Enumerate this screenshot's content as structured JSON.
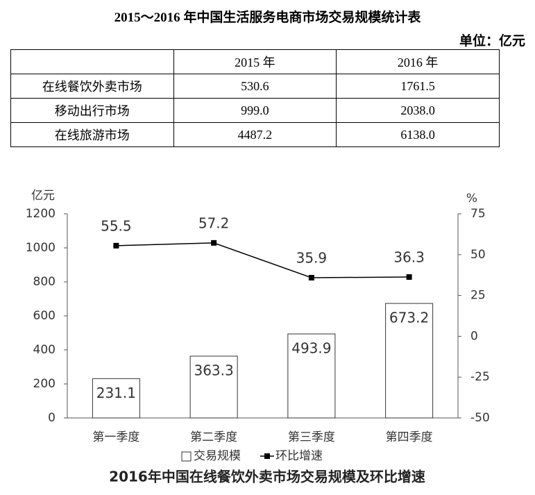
{
  "header": {
    "title": "2015～2016 年中国生活服务电商市场交易规模统计表",
    "unit": "单位：亿元"
  },
  "table": {
    "columns": [
      "2015 年",
      "2016 年"
    ],
    "rows": [
      [
        "在线餐饮外卖市场",
        "530.6",
        "1761.5"
      ],
      [
        "移动出行市场",
        "999.0",
        "2038.0"
      ],
      [
        "在线旅游市场",
        "4487.2",
        "6138.0"
      ]
    ]
  },
  "chart_data": {
    "type": "bar",
    "title": "2016年中国在线餐饮外卖市场交易规模及环比增速",
    "y_label": "亿元",
    "y2_label": "%",
    "categories": [
      "第一季度",
      "第二季度",
      "第三季度",
      "第四季度"
    ],
    "series": [
      {
        "name": "交易规模",
        "type": "bar",
        "color": "#ffffff",
        "values": [
          231.1,
          363.3,
          493.9,
          673.2
        ]
      },
      {
        "name": "环比增速",
        "type": "line",
        "axis": "y2",
        "color": "#000000",
        "values": [
          55.5,
          57.2,
          35.9,
          36.3
        ]
      }
    ],
    "ylim": [
      0,
      1200
    ],
    "yticks": [
      0,
      200,
      400,
      600,
      800,
      1000,
      1200
    ],
    "y2lim": [
      -50,
      75
    ],
    "y2ticks": [
      -50,
      -25,
      0,
      25,
      50,
      75
    ],
    "grid": false,
    "legend": "bottom"
  }
}
